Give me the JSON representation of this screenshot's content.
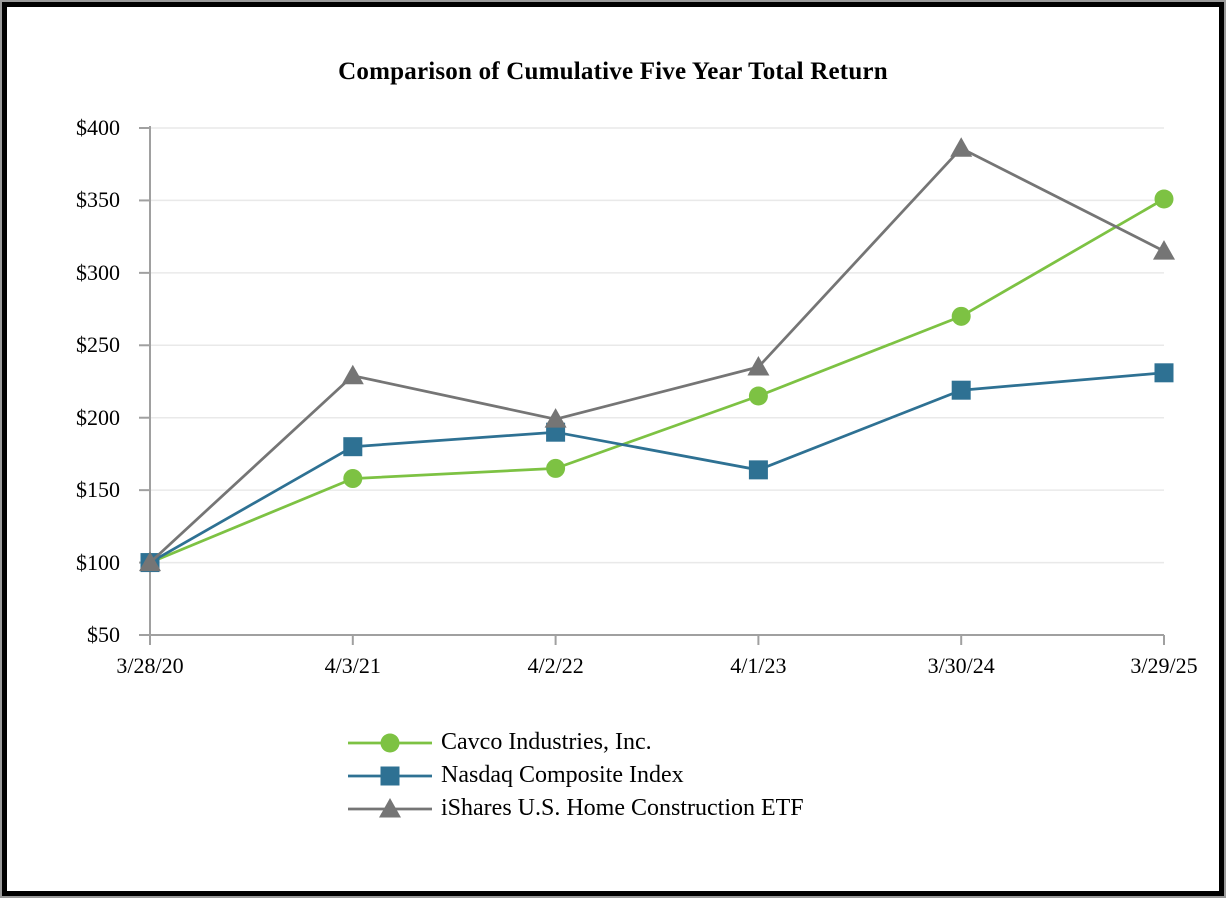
{
  "page": {
    "background": "#ffffff",
    "outer_edge_color": "#9a9a9a",
    "border_color": "#000000"
  },
  "chart_data": {
    "type": "line",
    "title": "Comparison of Cumulative Five Year Total Return",
    "xlabel": "",
    "ylabel": "",
    "categories": [
      "3/28/20",
      "4/3/21",
      "4/2/22",
      "4/1/23",
      "3/30/24",
      "3/29/25"
    ],
    "series": [
      {
        "name": "Cavco Industries, Inc.",
        "marker": "circle",
        "color": "#7DC243",
        "values": [
          100,
          158,
          165,
          215,
          270,
          351
        ]
      },
      {
        "name": "Nasdaq Composite Index",
        "marker": "square",
        "color": "#2E7193",
        "values": [
          100,
          180,
          190,
          164,
          219,
          231
        ]
      },
      {
        "name": "iShares U.S. Home Construction ETF",
        "marker": "triangle",
        "color": "#757575",
        "values": [
          100,
          229,
          199,
          235,
          386,
          315
        ]
      }
    ],
    "ylim": [
      50,
      400
    ],
    "ytick_interval": 50,
    "ytick_labels": [
      "$400",
      "$350",
      "$300",
      "$250",
      "$200",
      "$150",
      "$100",
      "$50"
    ],
    "ytick_values": [
      400,
      350,
      300,
      250,
      200,
      150,
      100,
      50
    ],
    "grid": true,
    "legend_position": "bottom-center",
    "colors": {
      "axis": "#A0A0A0",
      "gridline": "#E9E9E9",
      "text": "#000000"
    }
  }
}
